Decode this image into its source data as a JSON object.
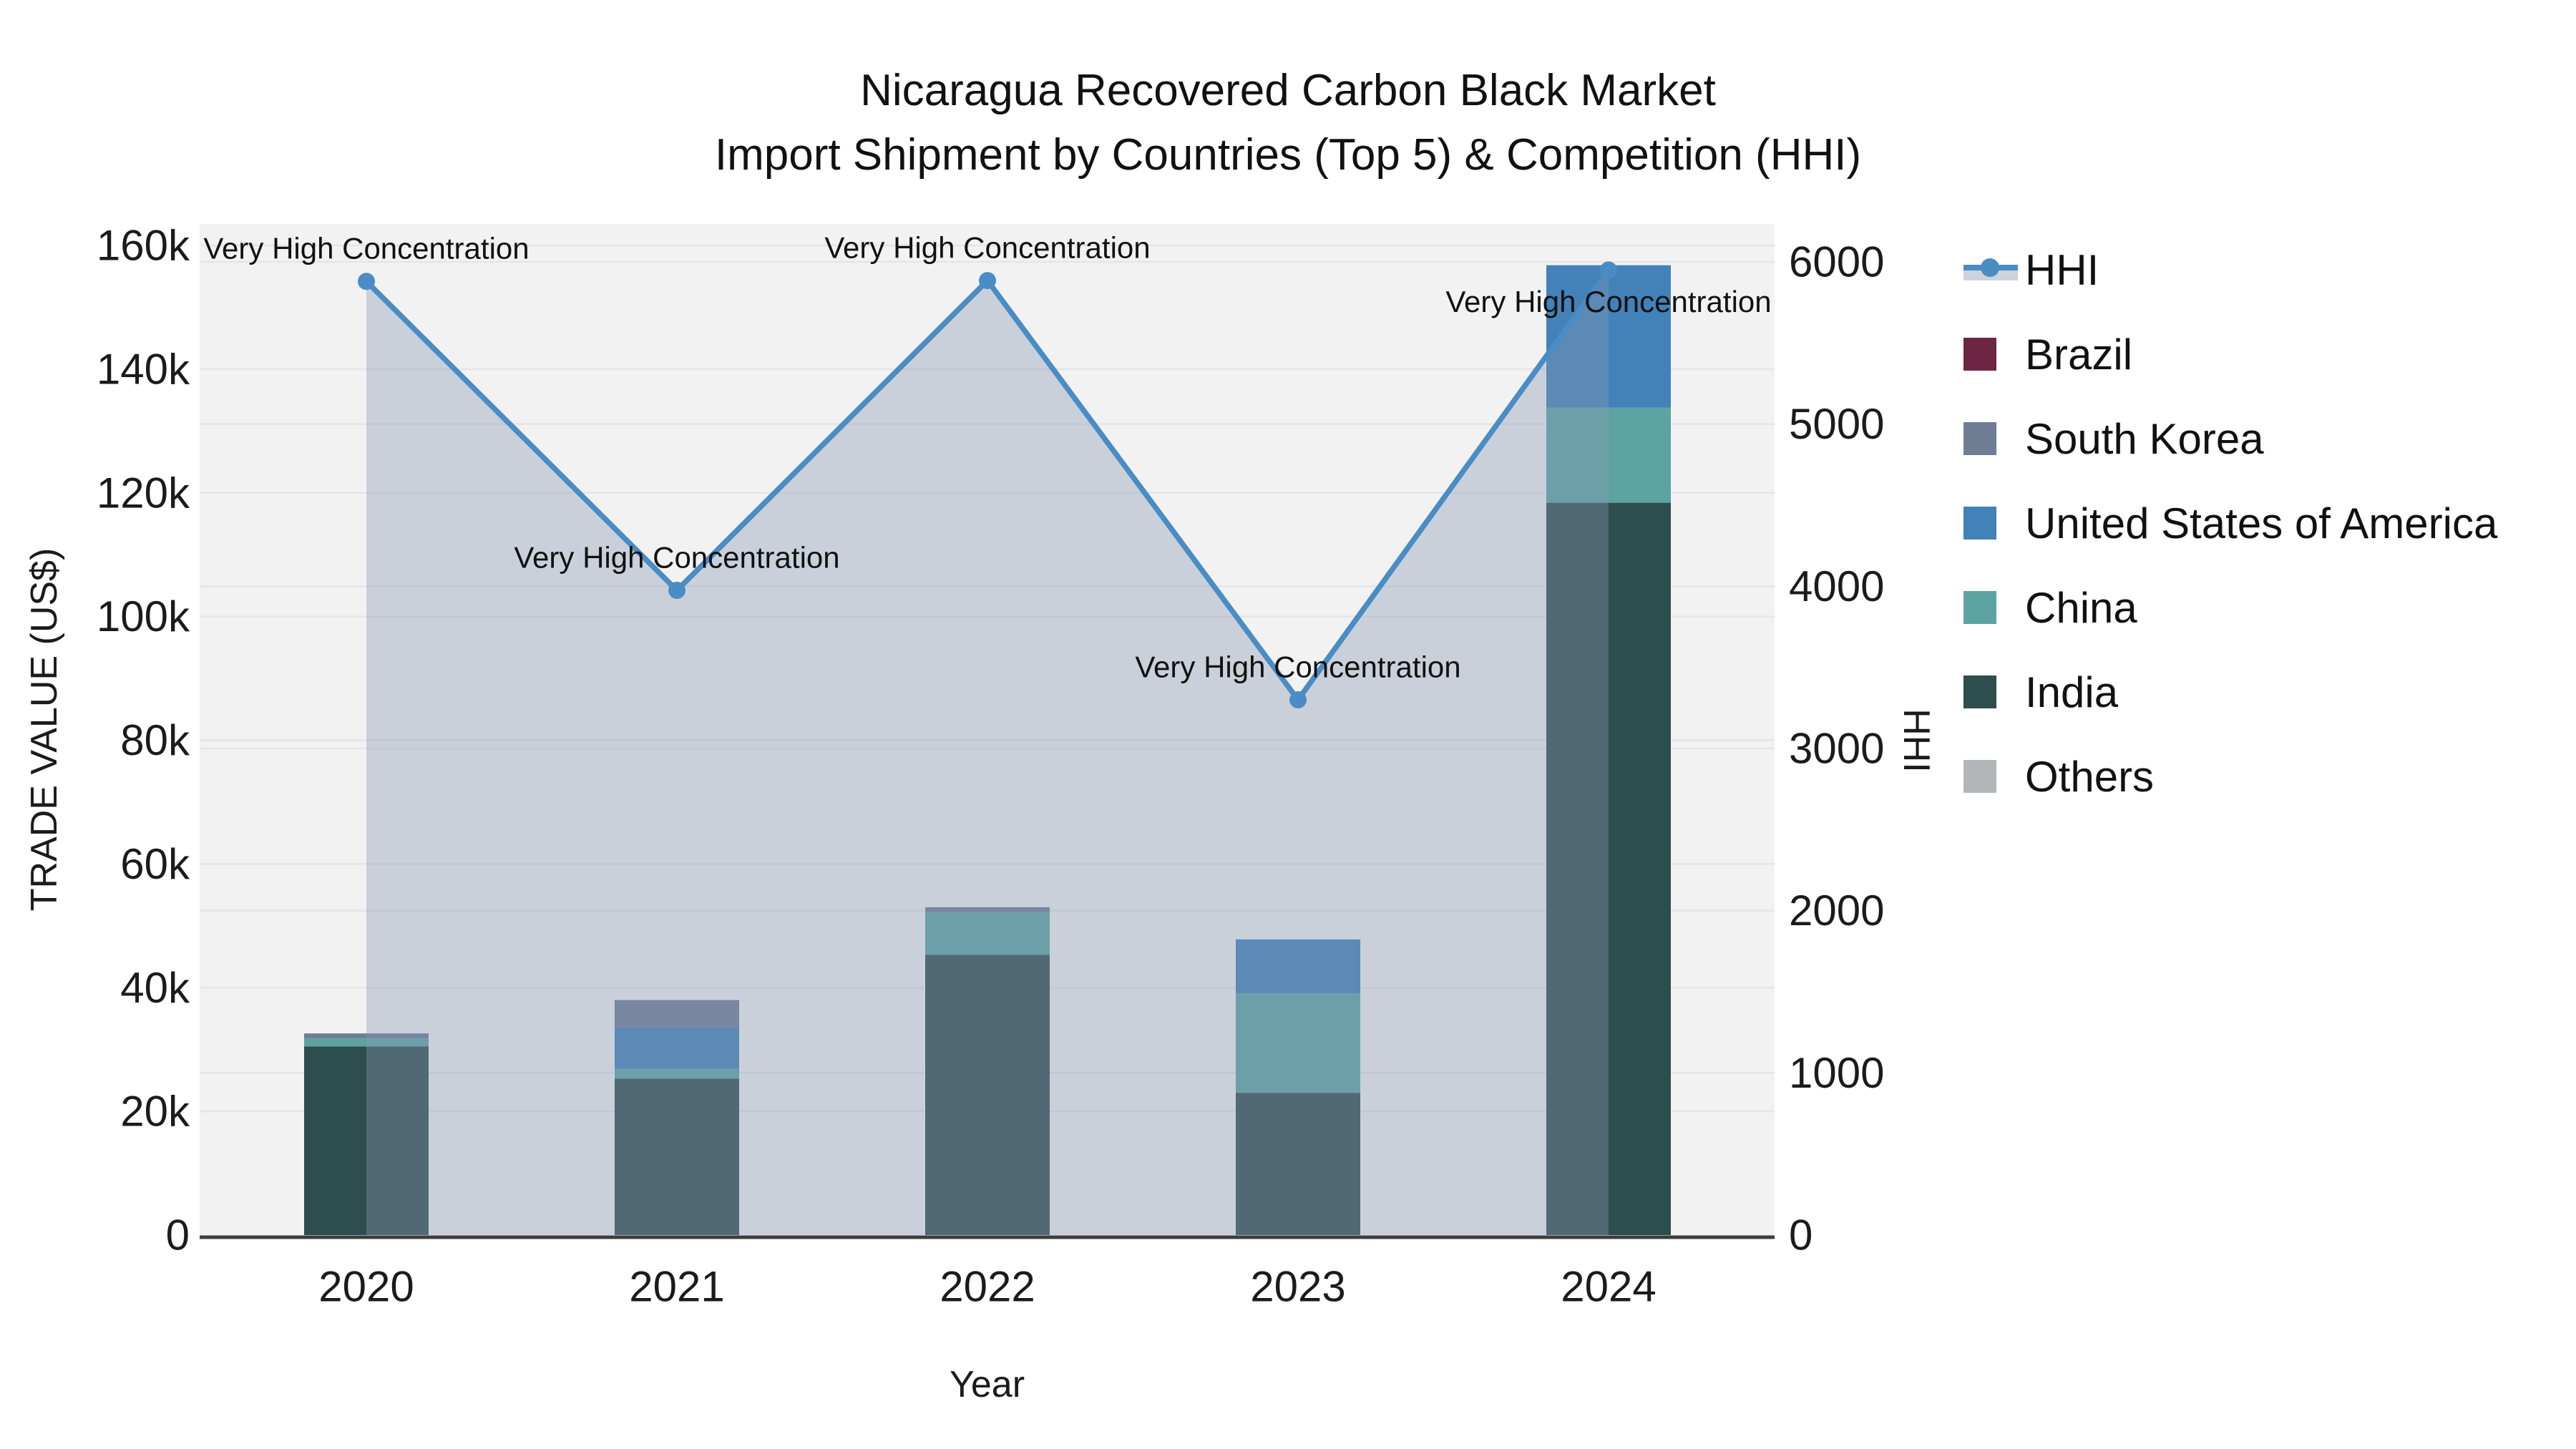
{
  "title": {
    "line1": "Nicaragua Recovered Carbon Black Market",
    "line2": "Import Shipment by Countries (Top 5) & Competition (HHI)"
  },
  "axes": {
    "x": {
      "title": "Year",
      "categories": [
        "2020",
        "2021",
        "2022",
        "2023",
        "2024"
      ]
    },
    "y_left": {
      "title": "TRADE VALUE (US$)",
      "tick_labels": [
        "0",
        "20k",
        "40k",
        "60k",
        "80k",
        "100k",
        "120k",
        "140k",
        "160k"
      ],
      "tick_values": [
        0,
        20000,
        40000,
        60000,
        80000,
        100000,
        120000,
        140000,
        160000
      ],
      "range": [
        0,
        160000
      ]
    },
    "y_right": {
      "title": "HHI",
      "tick_labels": [
        "0",
        "1000",
        "2000",
        "3000",
        "4000",
        "5000",
        "6000"
      ],
      "tick_values": [
        0,
        1000,
        2000,
        3000,
        4000,
        5000,
        6000
      ],
      "range": [
        0,
        6000
      ]
    }
  },
  "legend": {
    "items": [
      {
        "label": "HHI",
        "type": "line",
        "color": "#4a8cc4",
        "band": "#ccd3dd"
      },
      {
        "label": "Brazil",
        "type": "square",
        "color": "#6d2544"
      },
      {
        "label": "South Korea",
        "type": "square",
        "color": "#6e7d94"
      },
      {
        "label": "United States of America",
        "type": "square",
        "color": "#4282b8"
      },
      {
        "label": "China",
        "type": "square",
        "color": "#5ca3a2"
      },
      {
        "label": "India",
        "type": "square",
        "color": "#2e4d4e"
      },
      {
        "label": "Others",
        "type": "square",
        "color": "#b3b6b9"
      }
    ]
  },
  "chart_data": {
    "type": "combo-stacked-bar-line",
    "categories": [
      "2020",
      "2021",
      "2022",
      "2023",
      "2024"
    ],
    "bar_series": [
      {
        "name": "Brazil",
        "color": "#6d2544",
        "values": [
          0,
          0,
          0,
          0,
          0
        ]
      },
      {
        "name": "South Korea",
        "color": "#6e7d94",
        "values": [
          800,
          4400,
          800,
          0,
          0
        ]
      },
      {
        "name": "United States of America",
        "color": "#4282b8",
        "values": [
          0,
          6700,
          0,
          8700,
          23000
        ]
      },
      {
        "name": "China",
        "color": "#5ca3a2",
        "values": [
          1300,
          1600,
          6900,
          16100,
          15400
        ]
      },
      {
        "name": "India",
        "color": "#2e4d4e",
        "values": [
          30500,
          25300,
          45300,
          23000,
          118400
        ]
      },
      {
        "name": "Others",
        "color": "#b3b6b9",
        "values": [
          0,
          0,
          0,
          0,
          0
        ]
      }
    ],
    "bar_totals": [
      32600,
      38000,
      53000,
      47800,
      156800
    ],
    "stack_order_bottom_to_top": [
      "Others",
      "India",
      "China",
      "United States of America",
      "South Korea",
      "Brazil"
    ],
    "line_series": {
      "name": "HHI",
      "axis": "right",
      "color": "#4a8cc4",
      "fill_color": "rgba(137,152,178,0.38)",
      "values": [
        5880,
        3975,
        5885,
        3300,
        5950
      ]
    },
    "annotations": [
      {
        "text": "Very High Concentration",
        "category": "2020",
        "placement": "above"
      },
      {
        "text": "Very High Concentration",
        "category": "2021",
        "placement": "above"
      },
      {
        "text": "Very High Concentration",
        "category": "2022",
        "placement": "above"
      },
      {
        "text": "Very High Concentration",
        "category": "2023",
        "placement": "above"
      },
      {
        "text": "Very High Concentration",
        "category": "2024",
        "placement": "below"
      }
    ],
    "xlabel": "Year",
    "ylabel_left": "TRADE VALUE (US$)",
    "ylabel_right": "HHI",
    "grid": true,
    "legend_position": "right"
  },
  "colors": {
    "plot_bg": "#f2f2f3",
    "grid": "#e4e5e7",
    "axis_line": "#3d3d3d",
    "text": "#1b1b1b"
  }
}
